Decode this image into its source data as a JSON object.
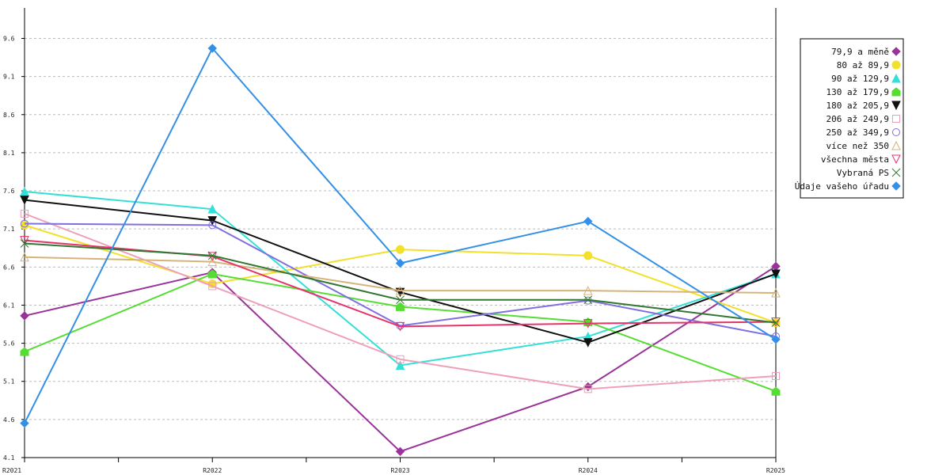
{
  "chart_data": {
    "type": "line",
    "categories": [
      "R2021",
      "R2022",
      "R2023",
      "R2024",
      "R2025"
    ],
    "ylim": [
      4.1,
      10.0
    ],
    "yticks": [
      4.1,
      4.6,
      5.1,
      5.6,
      6.1,
      6.6,
      7.1,
      7.6,
      8.1,
      8.6,
      9.1,
      9.6
    ],
    "grid": true,
    "legend_position": "top-right",
    "series": [
      {
        "name": "79,9 a měně",
        "color": "#993399",
        "marker": "diamond-filled",
        "values": [
          5.96,
          6.53,
          4.18,
          5.03,
          6.61
        ]
      },
      {
        "name": "80 až 89,9",
        "color": "#f2e02a",
        "marker": "circle-filled",
        "values": [
          7.15,
          6.38,
          6.83,
          6.75,
          5.87
        ]
      },
      {
        "name": "90 až 129,9",
        "color": "#33e0d8",
        "marker": "triangle-up-filled",
        "values": [
          7.59,
          7.36,
          5.31,
          5.69,
          6.51
        ]
      },
      {
        "name": "130 až 179,9",
        "color": "#55dd33",
        "marker": "house-filled",
        "values": [
          5.49,
          6.51,
          6.08,
          5.88,
          4.97
        ]
      },
      {
        "name": "180 až 205,9",
        "color": "#111111",
        "marker": "triangle-down-filled",
        "values": [
          7.48,
          7.21,
          6.27,
          5.61,
          6.51
        ]
      },
      {
        "name": "206 až 249,9",
        "color": "#eea0bb",
        "marker": "square-open",
        "values": [
          7.3,
          6.35,
          5.39,
          5.0,
          5.17
        ]
      },
      {
        "name": "250 až 349,9",
        "color": "#7f6fe0",
        "marker": "circle-open",
        "values": [
          7.17,
          7.15,
          5.83,
          6.16,
          5.69
        ]
      },
      {
        "name": "více než 350",
        "color": "#d6b37a",
        "marker": "triangle-up-open",
        "values": [
          6.73,
          6.67,
          6.29,
          6.29,
          6.26
        ]
      },
      {
        "name": "všechna města",
        "color": "#e6336a",
        "marker": "triangle-down-open",
        "values": [
          6.95,
          6.74,
          5.82,
          5.86,
          5.88
        ]
      },
      {
        "name": "Vybraná PS",
        "color": "#337733",
        "marker": "x",
        "values": [
          6.91,
          6.75,
          6.17,
          6.17,
          5.87
        ]
      },
      {
        "name": "Údaje vašeho úřadu",
        "color": "#3390e6",
        "marker": "diamond-filled",
        "values": [
          4.55,
          9.47,
          6.65,
          7.2,
          5.65
        ]
      }
    ]
  }
}
